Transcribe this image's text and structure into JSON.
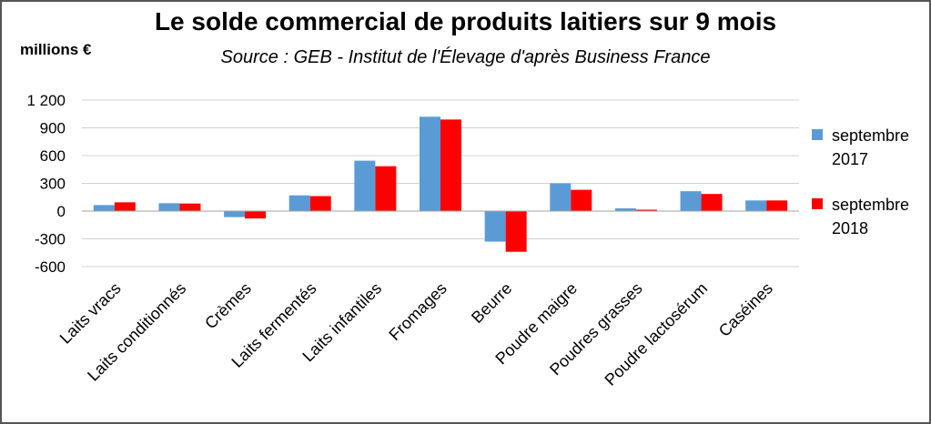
{
  "chart_data": {
    "type": "bar",
    "title": "Le solde commercial de produits laitiers sur 9 mois",
    "subtitle": "Source : GEB - Institut de l'Élevage d'après Business France",
    "ylabel": "millions €",
    "xlabel": "",
    "ylim": [
      -600,
      1200
    ],
    "yticks": [
      1200,
      900,
      600,
      300,
      0,
      -300,
      -600
    ],
    "ytick_labels": [
      "1 200",
      "900",
      "600",
      "300",
      "0",
      "-300",
      "-600"
    ],
    "grid": true,
    "legend_position": "right",
    "categories": [
      "Laits vracs",
      "Laits conditionnés",
      "Crèmes",
      "Laits fermentés",
      "Laits infantiles",
      "Fromages",
      "Beurre",
      "Poudre maigre",
      "Poudres grasses",
      "Poudre lactosérum",
      "Caséines"
    ],
    "series": [
      {
        "name_line1": "septembre",
        "name_line2": "2017",
        "color": "#5b9bd5",
        "values": [
          65,
          85,
          -65,
          170,
          545,
          1020,
          -330,
          300,
          30,
          215,
          115
        ]
      },
      {
        "name_line1": "septembre",
        "name_line2": "2018",
        "color": "#ff0000",
        "values": [
          95,
          82,
          -80,
          162,
          485,
          990,
          -440,
          230,
          15,
          185,
          115
        ]
      }
    ]
  }
}
